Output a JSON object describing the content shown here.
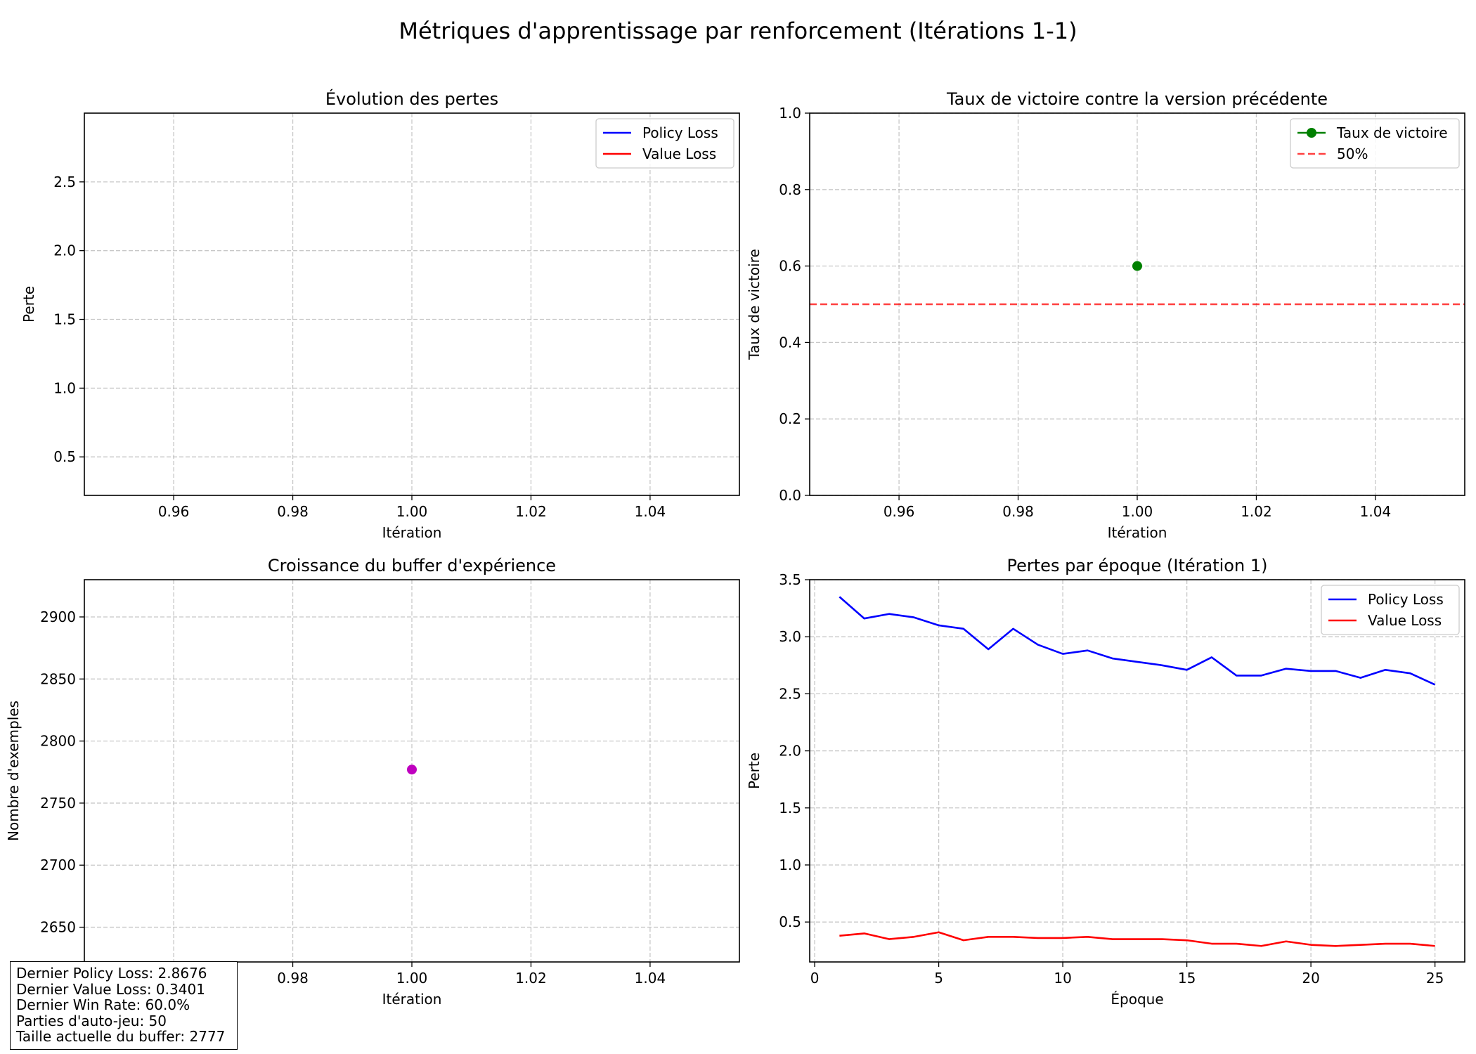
{
  "figure": {
    "title": "Métriques d'apprentissage par renforcement (Itérations 1-1)"
  },
  "chart_data": [
    {
      "id": "losses",
      "type": "line",
      "title": "Évolution des pertes",
      "xlabel": "Itération",
      "ylabel": "Perte",
      "xlim": [
        0.945,
        1.055
      ],
      "ylim": [
        0.22,
        3.0
      ],
      "xticks": [
        0.96,
        0.98,
        1.0,
        1.02,
        1.04
      ],
      "xtick_labels": [
        "0.96",
        "0.98",
        "1.00",
        "1.02",
        "1.04"
      ],
      "yticks": [
        0.5,
        1.0,
        1.5,
        2.0,
        2.5
      ],
      "ytick_labels": [
        "0.5",
        "1.0",
        "1.5",
        "2.0",
        "2.5"
      ],
      "grid": true,
      "legend": "top-right",
      "series": [
        {
          "name": "Policy Loss",
          "color": "#0000ff",
          "style": "solid",
          "x": [],
          "y": []
        },
        {
          "name": "Value Loss",
          "color": "#ff0000",
          "style": "solid",
          "x": [],
          "y": []
        }
      ]
    },
    {
      "id": "winrate",
      "type": "line",
      "title": "Taux de victoire contre la version précédente",
      "xlabel": "Itération",
      "ylabel": "Taux de victoire",
      "xlim": [
        0.945,
        1.055
      ],
      "ylim": [
        0.0,
        1.0
      ],
      "xticks": [
        0.96,
        0.98,
        1.0,
        1.02,
        1.04
      ],
      "xtick_labels": [
        "0.96",
        "0.98",
        "1.00",
        "1.02",
        "1.04"
      ],
      "yticks": [
        0.0,
        0.2,
        0.4,
        0.6,
        0.8,
        1.0
      ],
      "ytick_labels": [
        "0.0",
        "0.2",
        "0.4",
        "0.6",
        "0.8",
        "1.0"
      ],
      "grid": true,
      "legend": "top-right",
      "series": [
        {
          "name": "Taux de victoire",
          "color": "#008000",
          "style": "solid",
          "marker": "circle",
          "x": [
            1.0
          ],
          "y": [
            0.6
          ]
        },
        {
          "name": "50%",
          "color": "#ff0000",
          "style": "dashed",
          "hline": 0.5
        }
      ]
    },
    {
      "id": "buffer",
      "type": "scatter",
      "title": "Croissance du buffer d'expérience",
      "xlabel": "Itération",
      "ylabel": "Nombre d'exemples",
      "xlim": [
        0.945,
        1.055
      ],
      "ylim": [
        2622,
        2930
      ],
      "xticks": [
        0.96,
        0.98,
        1.0,
        1.02,
        1.04
      ],
      "xtick_labels": [
        "0.96",
        "0.98",
        "1.00",
        "1.02",
        "1.04"
      ],
      "yticks": [
        2650,
        2700,
        2750,
        2800,
        2850,
        2900
      ],
      "ytick_labels": [
        "2650",
        "2700",
        "2750",
        "2800",
        "2850",
        "2900"
      ],
      "grid": true,
      "series": [
        {
          "color": "#bf00bf",
          "marker": "circle",
          "x": [
            1.0
          ],
          "y": [
            2777
          ]
        }
      ]
    },
    {
      "id": "epochs",
      "type": "line",
      "title": "Pertes par époque (Itération 1)",
      "xlabel": "Époque",
      "ylabel": "Perte",
      "xlim": [
        -0.2,
        26.2
      ],
      "ylim": [
        0.15,
        3.5
      ],
      "xticks": [
        0,
        5,
        10,
        15,
        20,
        25
      ],
      "xtick_labels": [
        "0",
        "5",
        "10",
        "15",
        "20",
        "25"
      ],
      "yticks": [
        0.5,
        1.0,
        1.5,
        2.0,
        2.5,
        3.0,
        3.5
      ],
      "ytick_labels": [
        "0.5",
        "1.0",
        "1.5",
        "2.0",
        "2.5",
        "3.0",
        "3.5"
      ],
      "grid": true,
      "legend": "top-right",
      "series": [
        {
          "name": "Policy Loss",
          "color": "#0000ff",
          "style": "solid",
          "x": [
            1,
            2,
            3,
            4,
            5,
            6,
            7,
            8,
            9,
            10,
            11,
            12,
            13,
            14,
            15,
            16,
            17,
            18,
            19,
            20,
            21,
            22,
            23,
            24,
            25
          ],
          "y": [
            3.35,
            3.16,
            3.2,
            3.17,
            3.1,
            3.07,
            2.89,
            3.07,
            2.93,
            2.85,
            2.88,
            2.81,
            2.78,
            2.75,
            2.71,
            2.82,
            2.66,
            2.66,
            2.72,
            2.7,
            2.7,
            2.64,
            2.71,
            2.68,
            2.58
          ]
        },
        {
          "name": "Value Loss",
          "color": "#ff0000",
          "style": "solid",
          "x": [
            1,
            2,
            3,
            4,
            5,
            6,
            7,
            8,
            9,
            10,
            11,
            12,
            13,
            14,
            15,
            16,
            17,
            18,
            19,
            20,
            21,
            22,
            23,
            24,
            25
          ],
          "y": [
            0.38,
            0.4,
            0.35,
            0.37,
            0.41,
            0.34,
            0.37,
            0.37,
            0.36,
            0.36,
            0.37,
            0.35,
            0.35,
            0.35,
            0.34,
            0.31,
            0.31,
            0.29,
            0.33,
            0.3,
            0.29,
            0.3,
            0.31,
            0.31,
            0.29
          ]
        }
      ]
    }
  ],
  "stats_box": {
    "lines": [
      "Dernier Policy Loss: 2.8676",
      "Dernier Value Loss: 0.3401",
      "Dernier Win Rate: 60.0%",
      "Parties d'auto-jeu: 50",
      "Taille actuelle du buffer: 2777"
    ]
  }
}
